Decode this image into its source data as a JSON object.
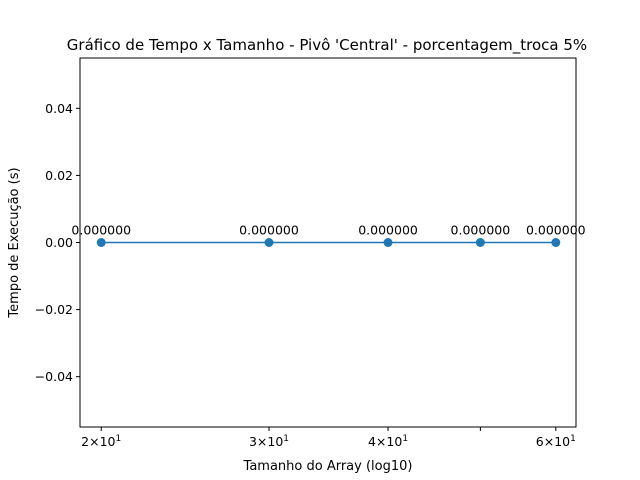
{
  "chart_data": {
    "type": "line",
    "title": "Gráfico de Tempo x Tamanho - Pivô 'Central' - porcentagem_troca 5%",
    "xlabel": "Tamanho do Array (log10)",
    "ylabel": "Tempo de Execução (s)",
    "xscale": "log",
    "xlim": [
      19.0,
      63.0
    ],
    "ylim": [
      -0.055,
      0.055
    ],
    "grid": false,
    "legend": "none",
    "x": [
      20,
      30,
      40,
      50,
      60
    ],
    "series": [
      {
        "values": [
          0.0,
          0.0,
          0.0,
          0.0,
          0.0
        ],
        "color": "#1f77b4",
        "marker": "circle"
      }
    ],
    "data_labels": [
      "0.000000",
      "0.000000",
      "0.000000",
      "0.000000",
      "0.000000"
    ],
    "x_ticks": [
      {
        "value": 20,
        "base": "2",
        "exp": "1"
      },
      {
        "value": 30,
        "base": "3",
        "exp": "1"
      },
      {
        "value": 40,
        "base": "4",
        "exp": "1"
      },
      {
        "value": 50,
        "base": "",
        "exp": ""
      },
      {
        "value": 60,
        "base": "6",
        "exp": "1"
      }
    ],
    "y_ticks": [
      {
        "value": 0.04,
        "label": "0.04"
      },
      {
        "value": 0.02,
        "label": "0.02"
      },
      {
        "value": 0.0,
        "label": "0.00"
      },
      {
        "value": -0.02,
        "label": "−0.02"
      },
      {
        "value": -0.04,
        "label": "−0.04"
      }
    ]
  }
}
